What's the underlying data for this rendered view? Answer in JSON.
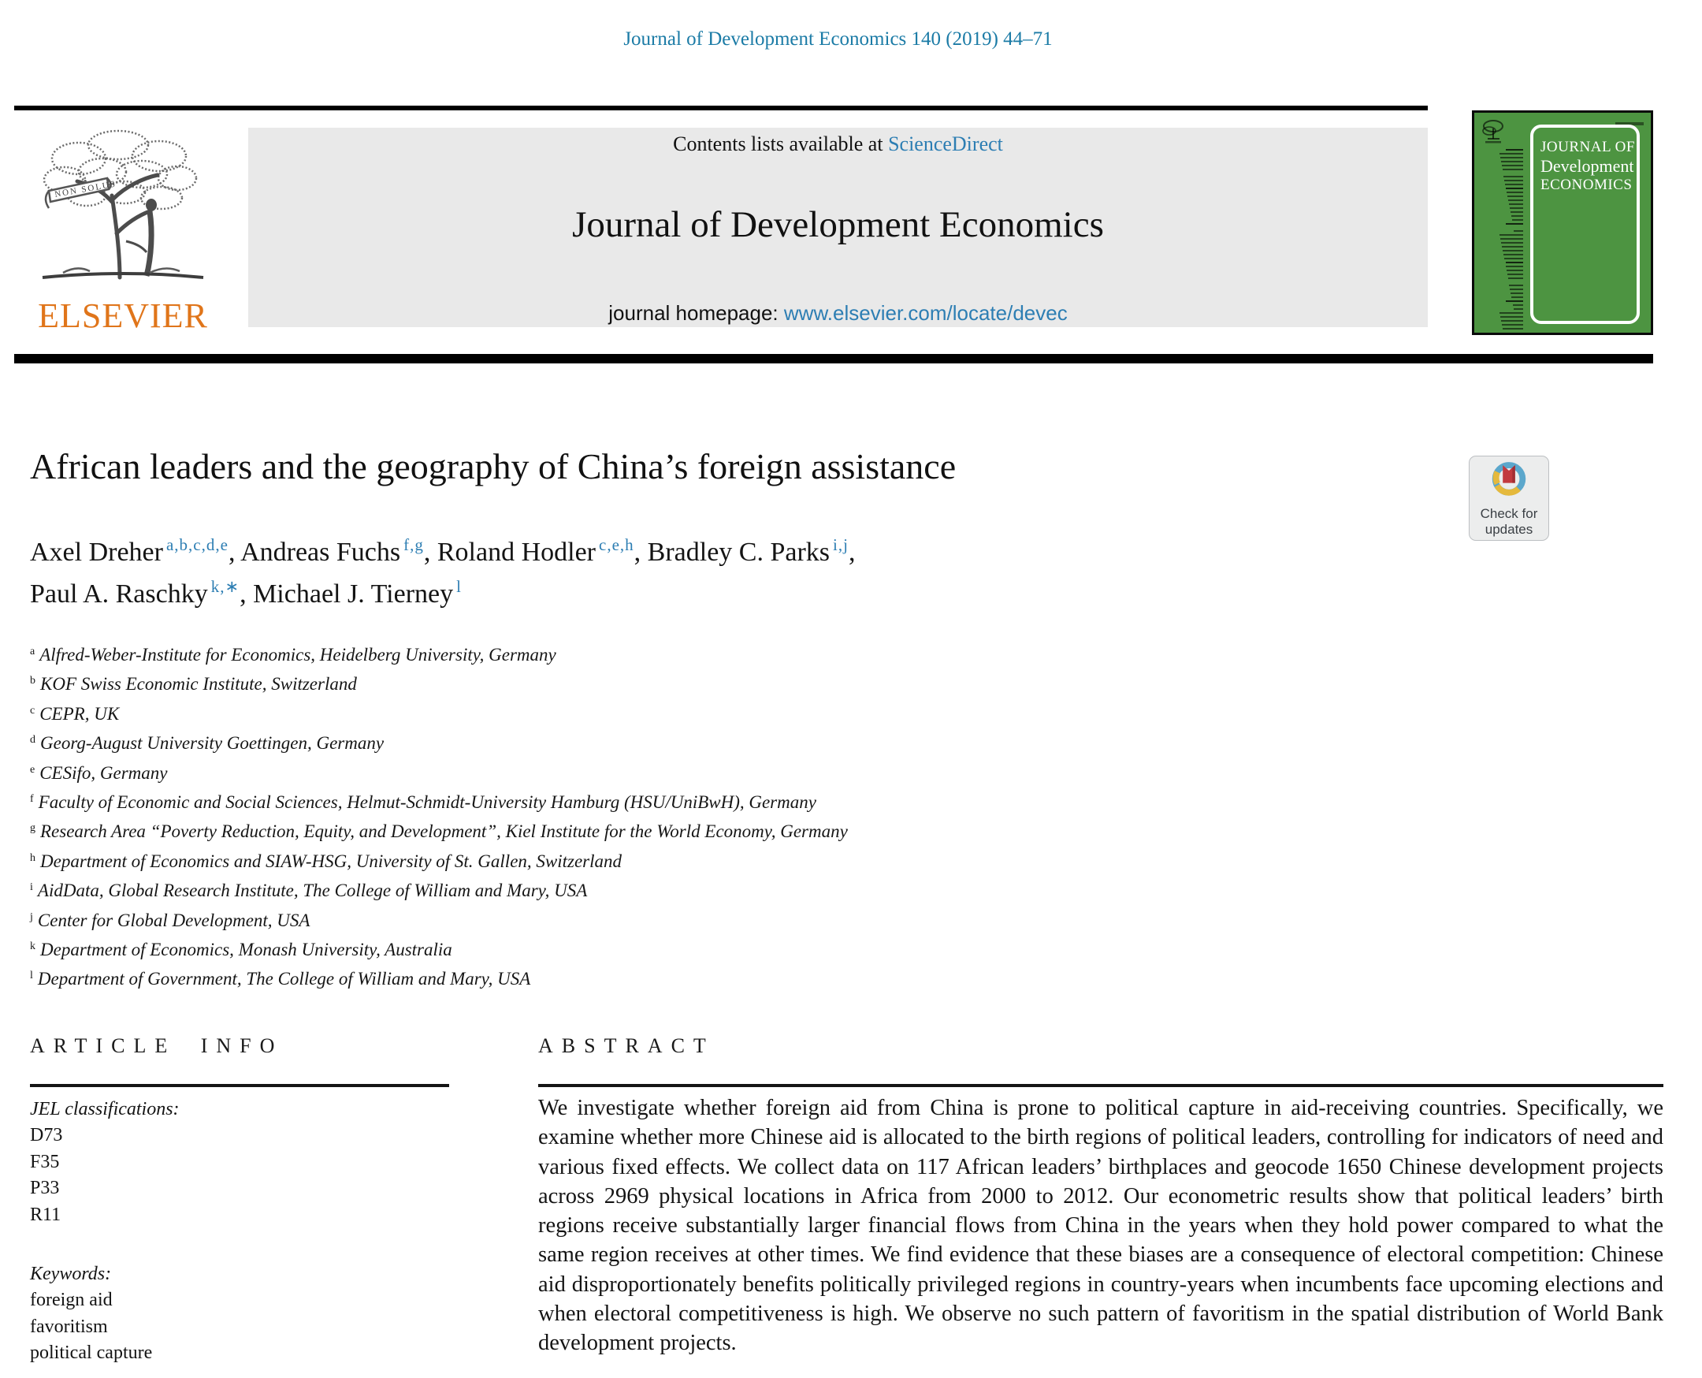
{
  "page": {
    "citation": "Journal of Development Economics 140 (2019) 44–71"
  },
  "header": {
    "contents_prefix": "Contents lists available at ",
    "sciencedirect_label": "ScienceDirect",
    "journal_title": "Journal of Development Economics",
    "homepage_prefix": "journal homepage: ",
    "homepage_url": "www.elsevier.com/locate/devec",
    "elsevier_wordmark": "ELSEVIER",
    "non_solus": "NON SOLUS"
  },
  "cover": {
    "line1": "JOURNAL OF",
    "line2": "Development",
    "line3": "ECONOMICS",
    "green": "#4d9441"
  },
  "badge": {
    "line1": "Check for",
    "line2": "updates"
  },
  "article": {
    "title": "African leaders and the geography of China’s foreign assistance",
    "authors": [
      {
        "name": "Axel Dreher",
        "sup": "a,b,c,d,e",
        "after": ", "
      },
      {
        "name": "Andreas Fuchs",
        "sup": "f,g",
        "after": ", "
      },
      {
        "name": "Roland Hodler",
        "sup": "c,e,h",
        "after": ", "
      },
      {
        "name": "Bradley C. Parks",
        "sup": "i,j",
        "after": ",",
        "newline": true
      },
      {
        "name": "Paul A. Raschky",
        "sup": "k,∗",
        "after": ", "
      },
      {
        "name": "Michael J. Tierney",
        "sup": "l",
        "after": ""
      }
    ],
    "affiliations": [
      {
        "sup": "a",
        "text": "Alfred-Weber-Institute for Economics, Heidelberg University, Germany"
      },
      {
        "sup": "b",
        "text": "KOF Swiss Economic Institute, Switzerland"
      },
      {
        "sup": "c",
        "text": "CEPR, UK"
      },
      {
        "sup": "d",
        "text": "Georg-August University Goettingen, Germany"
      },
      {
        "sup": "e",
        "text": "CESifo, Germany"
      },
      {
        "sup": "f",
        "text": "Faculty of Economic and Social Sciences, Helmut-Schmidt-University Hamburg (HSU/UniBwH), Germany"
      },
      {
        "sup": "g",
        "text": "Research Area “Poverty Reduction, Equity, and Development”, Kiel Institute for the World Economy, Germany"
      },
      {
        "sup": "h",
        "text": "Department of Economics and SIAW-HSG, University of St. Gallen, Switzerland"
      },
      {
        "sup": "i",
        "text": "AidData, Global Research Institute, The College of William and Mary, USA"
      },
      {
        "sup": "j",
        "text": "Center for Global Development, USA"
      },
      {
        "sup": "k",
        "text": "Department of Economics, Monash University, Australia"
      },
      {
        "sup": "l",
        "text": "Department of Government, The College of William and Mary, USA"
      }
    ]
  },
  "sections": {
    "article_info_heading": "ARTICLE INFO",
    "abstract_heading": "ABSTRACT",
    "jel_label": "JEL classifications:",
    "jel_codes": [
      "D73",
      "F35",
      "P33",
      "R11"
    ],
    "keywords_label": "Keywords:",
    "keywords": [
      "foreign aid",
      "favoritism",
      "political capture"
    ],
    "abstract_text": "We investigate whether foreign aid from China is prone to political capture in aid-receiving countries. Specifically, we examine whether more Chinese aid is allocated to the birth regions of political leaders, controlling for indicators of need and various fixed effects. We collect data on 117 African leaders’ birthplaces and geocode 1650 Chinese development projects across 2969 physical locations in Africa from 2000 to 2012. Our econometric results show that political leaders’ birth regions receive substantially larger financial flows from China in the years when they hold power compared to what the same region receives at other times. We find evidence that these biases are a consequence of electoral competition: Chinese aid disproportionately benefits politically privileged regions in country-years when incumbents face upcoming elections and when electoral competitiveness is high. We observe no such pattern of favoritism in the spatial distribution of World Bank development projects."
  },
  "colors": {
    "link_blue": "#2d7eb3",
    "citation_teal": "#1b7ba6",
    "elsevier_orange": "#E0751A",
    "cover_green": "#4d9441",
    "band_gray": "#e9e9e9",
    "badge_red": "#c23a3f",
    "badge_blue": "#5ba7cc",
    "badge_yellow": "#e5b93c"
  }
}
